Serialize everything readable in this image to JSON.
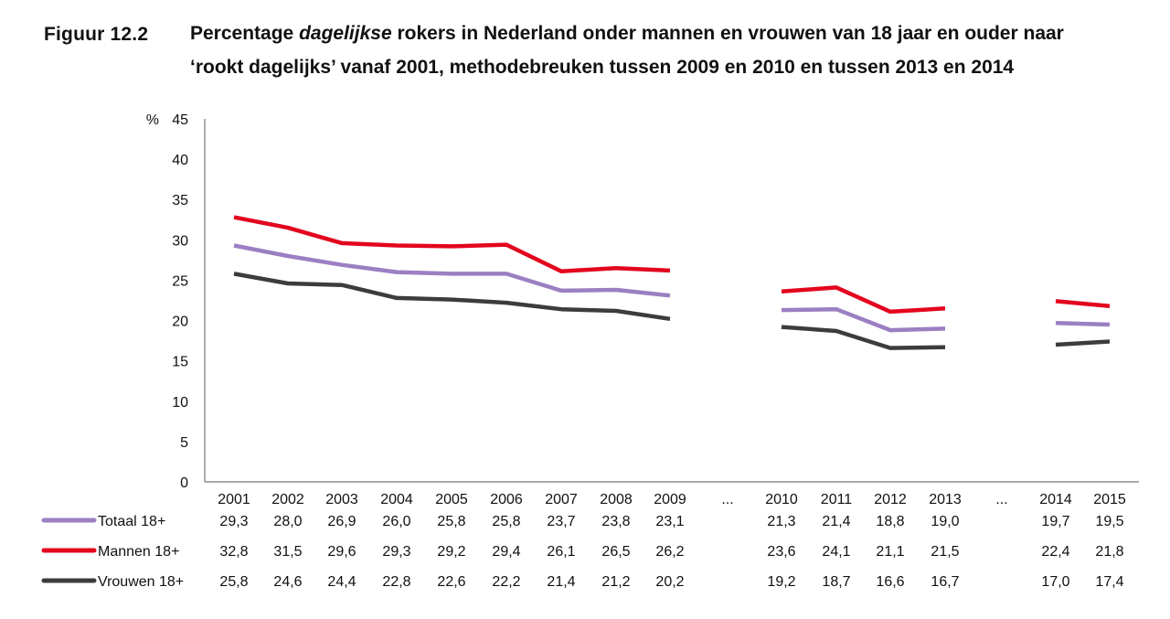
{
  "figure": {
    "label": "Figuur 12.2",
    "title_pre": "Percentage ",
    "title_emph": "dagelijkse",
    "title_post": " rokers in Nederland onder mannen en vrouwen van 18 jaar en ouder naar",
    "title_line2": "‘rookt dagelijks’ vanaf 2001, methodebreuken tussen 2009 en 2010 en tussen 2013 en 2014"
  },
  "chart_data": {
    "type": "line",
    "ylabel": "%",
    "ylim": [
      0,
      45
    ],
    "yticks": [
      0,
      5,
      10,
      15,
      20,
      25,
      30,
      35,
      40,
      45
    ],
    "grid": false,
    "legend_placement": "left of data table",
    "categories": [
      "2001",
      "2002",
      "2003",
      "2004",
      "2005",
      "2006",
      "2007",
      "2008",
      "2009",
      "...",
      "2010",
      "2011",
      "2012",
      "2013",
      "...",
      "2014",
      "2015"
    ],
    "segments": [
      [
        0,
        8
      ],
      [
        10,
        13
      ],
      [
        15,
        16
      ]
    ],
    "series": [
      {
        "name": "Totaal 18+",
        "color": "#9b7fc2",
        "values": [
          29.3,
          28.0,
          26.9,
          26.0,
          25.8,
          25.8,
          23.7,
          23.8,
          23.1,
          null,
          21.3,
          21.4,
          18.8,
          19.0,
          null,
          19.7,
          19.5
        ],
        "labels": [
          "29,3",
          "28,0",
          "26,9",
          "26,0",
          "25,8",
          "25,8",
          "23,7",
          "23,8",
          "23,1",
          "",
          "21,3",
          "21,4",
          "18,8",
          "19,0",
          "",
          "19,7",
          "19,5"
        ]
      },
      {
        "name": "Mannen 18+",
        "color": "#e3061e",
        "values": [
          32.8,
          31.5,
          29.6,
          29.3,
          29.2,
          29.4,
          26.1,
          26.5,
          26.2,
          null,
          23.6,
          24.1,
          21.1,
          21.5,
          null,
          22.4,
          21.8
        ],
        "labels": [
          "32,8",
          "31,5",
          "29,6",
          "29,3",
          "29,2",
          "29,4",
          "26,1",
          "26,5",
          "26,2",
          "",
          "23,6",
          "24,1",
          "21,1",
          "21,5",
          "",
          "22,4",
          "21,8"
        ]
      },
      {
        "name": "Vrouwen 18+",
        "color": "#3c3c3c",
        "values": [
          25.8,
          24.6,
          24.4,
          22.8,
          22.6,
          22.2,
          21.4,
          21.2,
          20.2,
          null,
          19.2,
          18.7,
          16.6,
          16.7,
          null,
          17.0,
          17.4
        ],
        "labels": [
          "25,8",
          "24,6",
          "24,4",
          "22,8",
          "22,6",
          "22,2",
          "21,4",
          "21,2",
          "20,2",
          "",
          "19,2",
          "18,7",
          "16,6",
          "16,7",
          "",
          "17,0",
          "17,4"
        ]
      }
    ]
  }
}
